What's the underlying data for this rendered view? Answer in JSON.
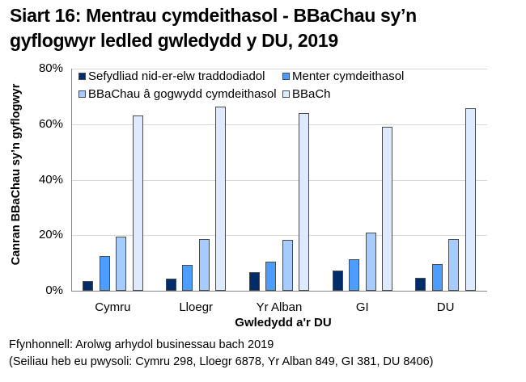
{
  "title": {
    "line1": "Siart 16: Mentrau cymdeithasol - BBaChau sy’n",
    "line2": "gyflogwyr ledled gwledydd y DU, 2019"
  },
  "footer": {
    "source": "Ffynhonnell: Arolwg arhydol businessau bach 2019",
    "bases": "(Seiliau heb eu pwysoli: Cymru 298, Lloegr 6878, Yr Alban 849, GI 381, DU 8406)"
  },
  "colors": {
    "series": [
      "#002d6a",
      "#4d9cff",
      "#a6cbff",
      "#ddeaff"
    ],
    "grid": "#d9d9d9",
    "axis": "#868686"
  },
  "chart_data": {
    "type": "bar",
    "title": "Siart 16: Mentrau cymdeithasol - BBaChau sy’n gyflogwyr ledled gwledydd y DU, 2019",
    "xlabel": "Gwledydd a'r DU",
    "ylabel": "Canran BBaChau sy’n gyflogwyr",
    "categories": [
      "Cymru",
      "Lloegr",
      "Yr Alban",
      "GI",
      "DU"
    ],
    "series": [
      {
        "name": "Sefydliad nid-er-elw traddodiadol",
        "values": [
          3.5,
          4.5,
          6.6,
          7.4,
          4.6
        ]
      },
      {
        "name": "Menter cymdeithasol",
        "values": [
          12.6,
          9.2,
          10.4,
          11.3,
          9.6
        ]
      },
      {
        "name": "BBaChau â gogwydd cymdeithasol",
        "values": [
          19.6,
          18.6,
          18.2,
          21.0,
          18.6
        ]
      },
      {
        "name": "BBaCh",
        "values": [
          63.0,
          66.3,
          64.0,
          59.0,
          65.8
        ]
      }
    ],
    "ylim": [
      0,
      80
    ],
    "yticks": [
      "0%",
      "20%",
      "40%",
      "60%",
      "80%"
    ],
    "grid": true,
    "legend_position": "top-inside"
  }
}
